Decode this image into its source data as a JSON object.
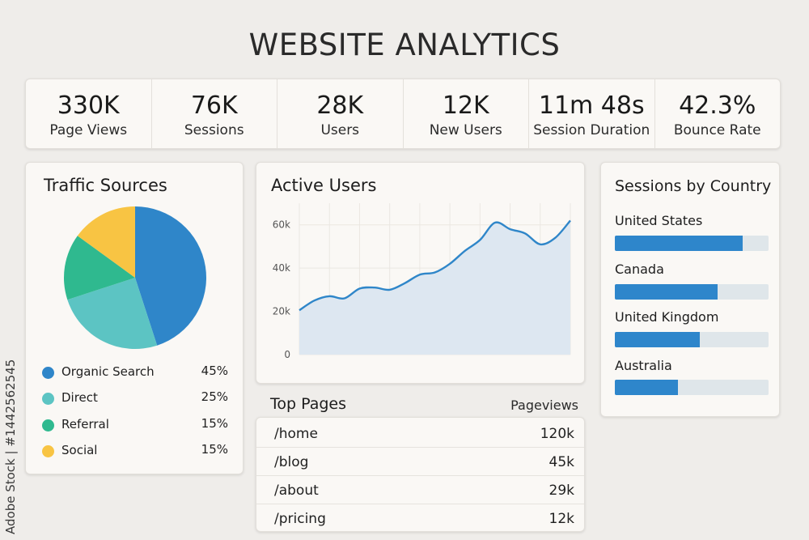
{
  "page": {
    "title": "WEBSITE ANALYTICS"
  },
  "kpis": [
    {
      "value": "330K",
      "label": "Page Views"
    },
    {
      "value": "76K",
      "label": "Sessions"
    },
    {
      "value": "28K",
      "label": "Users"
    },
    {
      "value": "12K",
      "label": "New Users"
    },
    {
      "value": "11m 48s",
      "label": "Session Duration"
    },
    {
      "value": "42.3%",
      "label": "Bounce Rate"
    }
  ],
  "traffic": {
    "title": "Traffic Sources",
    "items": [
      {
        "label": "Organic Search",
        "pct": "45%",
        "value": 45,
        "color": "#2f86c9"
      },
      {
        "label": "Direct",
        "pct": "25%",
        "value": 25,
        "color": "#5cc4c3"
      },
      {
        "label": "Referral",
        "pct": "15%",
        "value": 15,
        "color": "#2fb98f"
      },
      {
        "label": "Social",
        "pct": "15%",
        "value": 15,
        "color": "#f8c443"
      }
    ]
  },
  "active_users": {
    "title": "Active Users",
    "y_ticks": [
      "0",
      "20k",
      "40k",
      "60k"
    ]
  },
  "chart_data": {
    "type": "area",
    "title": "Active Users",
    "ylim": [
      0,
      70000
    ],
    "y_ticks": [
      0,
      20000,
      40000,
      60000
    ],
    "x": [
      0,
      1,
      2,
      3,
      4,
      5,
      6,
      7,
      8,
      9,
      10,
      11,
      12,
      13,
      14,
      15,
      16,
      17,
      18
    ],
    "values": [
      20500,
      25000,
      27000,
      26000,
      30500,
      31000,
      30000,
      33000,
      37000,
      38000,
      42000,
      48000,
      53000,
      61000,
      58000,
      56000,
      51000,
      54000,
      62000
    ],
    "grid": true,
    "line_color": "#2f86c9",
    "fill_color": "#dde7f1"
  },
  "top_pages": {
    "title": "Top Pages",
    "column": "Pageviews",
    "rows": [
      {
        "path": "/home",
        "views": "120k"
      },
      {
        "path": "/blog",
        "views": "45k"
      },
      {
        "path": "/about",
        "views": "29k"
      },
      {
        "path": "/pricing",
        "views": "12k"
      }
    ]
  },
  "countries": {
    "title": "Sessions by Country",
    "items": [
      {
        "label": "United States",
        "fraction": 0.83
      },
      {
        "label": "Canada",
        "fraction": 0.67
      },
      {
        "label": "United Kingdom",
        "fraction": 0.55
      },
      {
        "label": "Australia",
        "fraction": 0.41
      }
    ]
  },
  "watermark": "Adobe Stock | #1442562545"
}
